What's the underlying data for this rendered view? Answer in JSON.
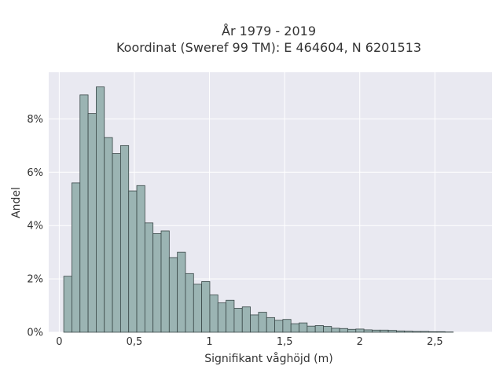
{
  "chart_data": {
    "type": "bar",
    "subtype": "histogram",
    "title_line1": "År 1979 - 2019",
    "title_line2": "Koordinat (Sweref 99 TM): E 464604, N 6201513",
    "xlabel": "Signifikant våghöjd (m)",
    "ylabel": "Andel",
    "xlim": [
      -0.07,
      2.88
    ],
    "ylim": [
      0,
      0.0975
    ],
    "x_ticks": [
      0,
      0.5,
      1,
      1.5,
      2,
      2.5
    ],
    "x_tick_labels": [
      "0",
      "0,5",
      "1",
      "1,5",
      "2",
      "2,5"
    ],
    "y_ticks": [
      0,
      0.02,
      0.04,
      0.06,
      0.08
    ],
    "y_tick_labels": [
      "0%",
      "2%",
      "4%",
      "6%",
      "8%"
    ],
    "grid": true,
    "bin_start": 0.03,
    "bin_width": 0.054,
    "values": [
      0.021,
      0.056,
      0.089,
      0.082,
      0.092,
      0.073,
      0.067,
      0.07,
      0.053,
      0.055,
      0.041,
      0.037,
      0.038,
      0.028,
      0.03,
      0.022,
      0.018,
      0.019,
      0.014,
      0.011,
      0.012,
      0.009,
      0.0095,
      0.0065,
      0.0075,
      0.0055,
      0.0045,
      0.0048,
      0.0032,
      0.0035,
      0.0023,
      0.0025,
      0.0022,
      0.0015,
      0.0014,
      0.0011,
      0.0012,
      0.0009,
      0.0008,
      0.0008,
      0.0007,
      0.0005,
      0.0004,
      0.0003,
      0.0003,
      0.0002,
      0.0002,
      0.0001
    ],
    "colors": {
      "bar_fill": "#9bb4b3",
      "bar_stroke": "#3a4848",
      "plot_bg": "#e9e9f1",
      "grid": "#ffffff"
    }
  }
}
